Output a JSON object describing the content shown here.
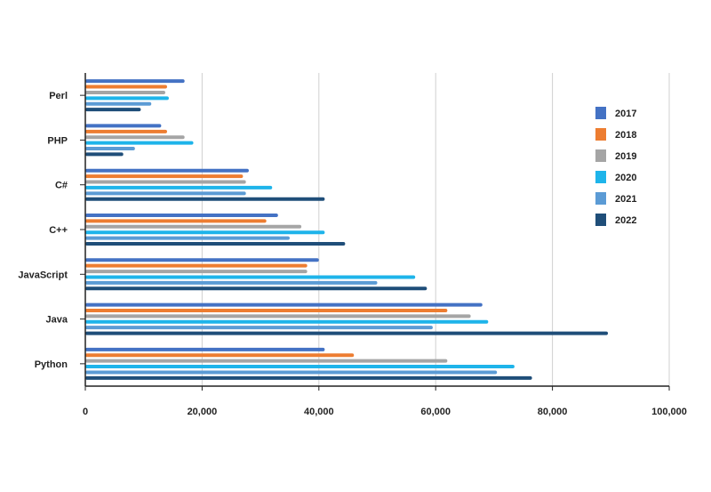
{
  "chart_data": {
    "type": "bar",
    "orientation": "horizontal",
    "categories": [
      "Perl",
      "PHP",
      "C#",
      "C++",
      "JavaScript",
      "Java",
      "Python"
    ],
    "series": [
      {
        "name": "2017",
        "color": "#4472c4",
        "values": [
          17000,
          13000,
          28000,
          33000,
          40000,
          68000,
          41000
        ]
      },
      {
        "name": "2018",
        "color": "#ed7d31",
        "values": [
          14000,
          14000,
          27000,
          31000,
          38000,
          62000,
          46000
        ]
      },
      {
        "name": "2019",
        "color": "#a5a5a5",
        "values": [
          13700,
          17000,
          27500,
          37000,
          38000,
          66000,
          62000
        ]
      },
      {
        "name": "2020",
        "color": "#1eb4ea",
        "values": [
          14300,
          18500,
          32000,
          41000,
          56500,
          69000,
          73500
        ]
      },
      {
        "name": "2021",
        "color": "#5b9bd5",
        "values": [
          11300,
          8500,
          27500,
          35000,
          50000,
          59500,
          70500
        ]
      },
      {
        "name": "2022",
        "color": "#1f4e79",
        "values": [
          9500,
          6500,
          41000,
          44500,
          58500,
          89500,
          76500
        ]
      }
    ],
    "x_ticks": [
      "0",
      "20,000",
      "40,000",
      "60,000",
      "80,000",
      "100,000"
    ],
    "xlim": [
      0,
      100000
    ],
    "grid": "vertical",
    "legend_position": "right"
  }
}
